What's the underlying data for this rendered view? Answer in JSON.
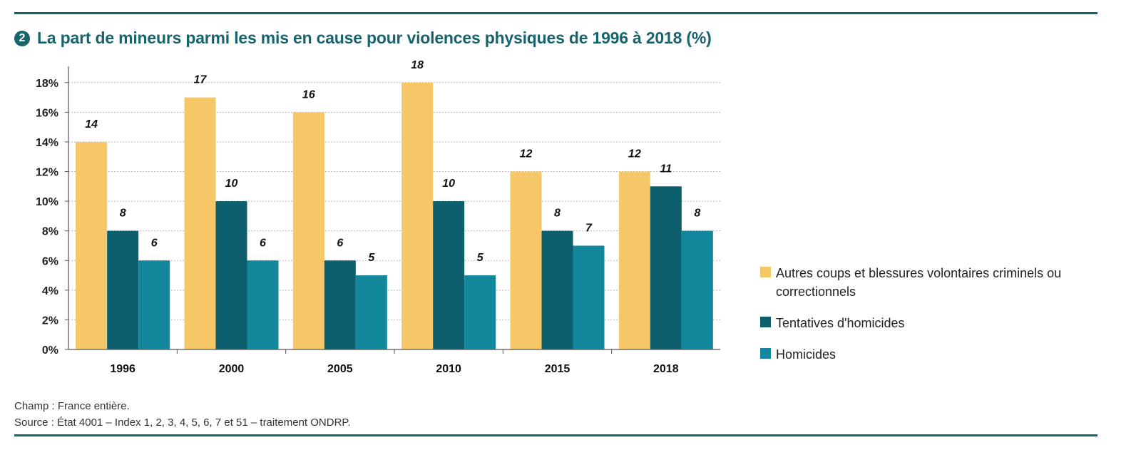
{
  "header": {
    "badge": "2",
    "title": "La part de mineurs parmi les mis en cause pour violences physiques de 1996 à 2018 (%)"
  },
  "chart_data": {
    "type": "bar",
    "categories": [
      "1996",
      "2000",
      "2005",
      "2010",
      "2015",
      "2018"
    ],
    "series": [
      {
        "name": "Autres coups et blessures volontaires criminels ou correctionnels",
        "color": "#f5c766",
        "values": [
          14,
          17,
          16,
          18,
          12,
          12
        ]
      },
      {
        "name": "Tentatives d'homicides",
        "color": "#0e5f6d",
        "values": [
          8,
          10,
          6,
          10,
          8,
          11
        ]
      },
      {
        "name": "Homicides",
        "color": "#13879b",
        "values": [
          6,
          6,
          5,
          5,
          7,
          8
        ]
      }
    ],
    "yticks": [
      "0%",
      "2%",
      "4%",
      "6%",
      "8%",
      "10%",
      "12%",
      "14%",
      "16%",
      "18%"
    ],
    "ylim": [
      0,
      19
    ],
    "ystep": 2,
    "grid": true,
    "legend_position": "right"
  },
  "footer": {
    "line1": "Champ : France entière.",
    "line2": "Source : État 4001 – Index 1, 2, 3, 4, 5, 6, 7 et 51 – traitement ONDRP."
  }
}
